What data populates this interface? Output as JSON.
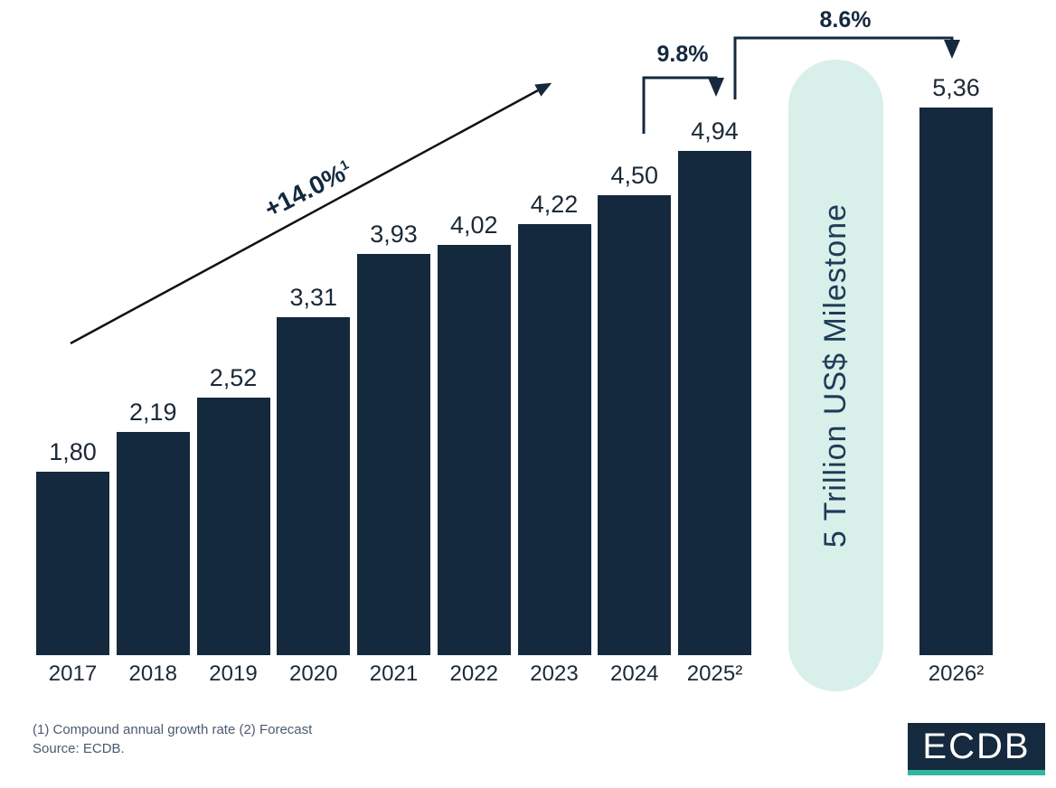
{
  "chart_data": {
    "type": "bar",
    "title": "",
    "categories": [
      "2017",
      "2018",
      "2019",
      "2020",
      "2021",
      "2022",
      "2023",
      "2024",
      "2025²",
      "2026²"
    ],
    "values": [
      1.8,
      2.19,
      2.52,
      3.31,
      3.93,
      4.02,
      4.22,
      4.5,
      4.94,
      5.36
    ],
    "value_labels": [
      "1,80",
      "2,19",
      "2,52",
      "3,31",
      "3,93",
      "4,02",
      "4,22",
      "4,50",
      "4,94",
      "5,36"
    ],
    "unit": "Trillion US$",
    "ylim": [
      0,
      5.5
    ],
    "grid": false,
    "legend": false,
    "annotations": {
      "cagr": {
        "label": "+14.0%",
        "superscript": "1"
      },
      "growth_2024_2025": "9.8%",
      "growth_2025_2026": "8.6%",
      "milestone": "5 Trillion US$ Milestone"
    },
    "colors": {
      "bar": "#14293E",
      "milestone_bg": "#D9EFE9",
      "navy_text": "#14293E",
      "footnote_text": "#4A5B6E",
      "logo_bg": "#152A3E",
      "logo_accent": "#2FB5A0"
    }
  },
  "footnotes": {
    "line1": "(1) Compound annual growth rate (2) Forecast",
    "line2": "Source: ECDB."
  },
  "logo": {
    "text": "ECDB"
  }
}
